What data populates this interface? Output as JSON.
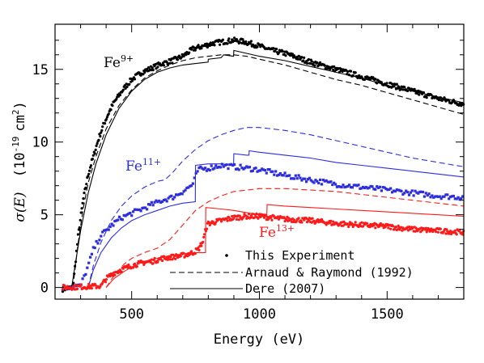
{
  "chart_data": {
    "type": "line",
    "xlabel": "Energy (eV)",
    "ylabel_main": "σ(E)",
    "ylabel_unit": "(10",
    "ylabel_exp1": "-19",
    "ylabel_unit2": "cm",
    "ylabel_exp2": "2",
    "ylabel_close": ")",
    "xlim": [
      200,
      1800
    ],
    "ylim": [
      -0.8,
      18.1
    ],
    "x_ticks": [
      500,
      1000,
      1500
    ],
    "x_tick_labels": [
      "500",
      "1000",
      "1500"
    ],
    "y_ticks": [
      0,
      5,
      10,
      15
    ],
    "y_tick_labels": [
      "0",
      "5",
      "10",
      "15"
    ],
    "grid": false,
    "legend_position": "bottom-right",
    "legend": [
      {
        "label": "This Experiment",
        "style": "dots"
      },
      {
        "label": "Arnaud & Raymond (1992)",
        "style": "dashed"
      },
      {
        "label": "Dere (2007)",
        "style": "solid"
      }
    ],
    "ions": [
      {
        "element": "Fe",
        "charge": "9+",
        "color": "#000000",
        "experiment": {
          "x": [
            230,
            270,
            290,
            310,
            330,
            350,
            370,
            390,
            410,
            430,
            450,
            470,
            500,
            540,
            580,
            620,
            660,
            700,
            740,
            780,
            820,
            860,
            900,
            940,
            980,
            1000,
            1050,
            1100,
            1200,
            1300,
            1400,
            1500,
            1600,
            1700,
            1800
          ],
          "y": [
            -0.1,
            0.0,
            3.5,
            6.0,
            7.8,
            9.0,
            10.2,
            11.2,
            12.0,
            12.7,
            13.2,
            13.7,
            14.3,
            14.8,
            15.1,
            15.4,
            15.6,
            15.9,
            16.4,
            16.6,
            16.8,
            16.9,
            17.0,
            16.9,
            16.7,
            16.6,
            16.3,
            16.1,
            15.5,
            15.0,
            14.5,
            14.0,
            13.5,
            13.0,
            12.6
          ]
        },
        "arnaud_raymond": {
          "x": [
            270,
            290,
            310,
            330,
            360,
            400,
            450,
            500,
            550,
            600,
            650,
            700,
            750,
            800,
            850,
            880,
            900,
            950,
            1000,
            1100,
            1200,
            1300,
            1400,
            1500,
            1600,
            1700,
            1800
          ],
          "y": [
            0,
            3.0,
            5.4,
            7.2,
            9.0,
            10.9,
            12.5,
            13.6,
            14.4,
            14.9,
            15.3,
            15.6,
            15.8,
            15.9,
            16.0,
            16.0,
            16.0,
            15.9,
            15.7,
            15.3,
            14.8,
            14.3,
            13.9,
            13.4,
            12.9,
            12.4,
            11.9
          ]
        },
        "dere": {
          "x": [
            265,
            280,
            300,
            330,
            360,
            400,
            450,
            500,
            550,
            600,
            650,
            700,
            750,
            799,
            800,
            850,
            860,
            899,
            900,
            950,
            1000,
            1100,
            1200,
            1300,
            1400,
            1500,
            1600,
            1700,
            1800
          ],
          "y": [
            0,
            1.7,
            3.9,
            6.5,
            8.5,
            10.5,
            12.3,
            13.5,
            14.3,
            14.8,
            15.1,
            15.3,
            15.4,
            15.5,
            15.7,
            15.8,
            16.0,
            15.9,
            16.3,
            16.1,
            15.9,
            15.6,
            15.2,
            14.8,
            14.4,
            13.9,
            13.5,
            13.1,
            12.7
          ]
        }
      },
      {
        "element": "Fe",
        "charge": "11+",
        "color": "#2d2de0",
        "experiment": {
          "x": [
            230,
            300,
            330,
            350,
            380,
            400,
            430,
            460,
            500,
            540,
            580,
            620,
            660,
            700,
            740,
            760,
            800,
            850,
            900,
            950,
            1000,
            1050,
            1100,
            1200,
            1300,
            1400,
            1500,
            1600,
            1700,
            1800
          ],
          "y": [
            0,
            0.1,
            1.5,
            2.6,
            3.6,
            3.9,
            4.4,
            4.8,
            5.1,
            5.4,
            5.7,
            6.0,
            6.2,
            6.6,
            7.1,
            8.1,
            8.2,
            8.4,
            8.3,
            8.2,
            8.1,
            7.9,
            7.7,
            7.4,
            7.1,
            6.9,
            6.7,
            6.5,
            6.3,
            6.2
          ]
        },
        "arnaud_raymond": {
          "x": [
            330,
            350,
            380,
            420,
            460,
            500,
            550,
            600,
            630,
            660,
            700,
            750,
            800,
            850,
            900,
            950,
            1000,
            1100,
            1200,
            1300,
            1400,
            1500,
            1600,
            1700,
            1800
          ],
          "y": [
            0,
            1.5,
            3.1,
            4.6,
            5.6,
            6.3,
            6.9,
            7.3,
            7.4,
            7.9,
            8.7,
            9.5,
            10.1,
            10.5,
            10.8,
            11.0,
            11.0,
            10.8,
            10.5,
            10.1,
            9.7,
            9.3,
            8.9,
            8.6,
            8.3
          ]
        },
        "dere": {
          "x": [
            330,
            350,
            380,
            420,
            460,
            500,
            550,
            600,
            650,
            700,
            749,
            750,
            800,
            850,
            899,
            900,
            950,
            959,
            960,
            1000,
            1100,
            1200,
            1300,
            1400,
            1500,
            1600,
            1700,
            1800
          ],
          "y": [
            0,
            1.2,
            2.4,
            3.4,
            4.1,
            4.6,
            5.0,
            5.3,
            5.6,
            5.8,
            5.9,
            8.4,
            8.5,
            8.5,
            8.4,
            9.2,
            9.1,
            9.1,
            9.4,
            9.3,
            9.1,
            8.9,
            8.6,
            8.4,
            8.2,
            8.0,
            7.8,
            7.6
          ]
        }
      },
      {
        "element": "Fe",
        "charge": "13+",
        "color": "#ff1a1a",
        "experiment": {
          "x": [
            230,
            380,
            400,
            430,
            470,
            500,
            540,
            580,
            620,
            660,
            700,
            740,
            760,
            780,
            790,
            800,
            850,
            900,
            950,
            1000,
            1050,
            1100,
            1200,
            1300,
            1400,
            1500,
            1600,
            1700,
            1800
          ],
          "y": [
            0,
            0.1,
            0.6,
            1.0,
            1.3,
            1.5,
            1.7,
            1.8,
            2.0,
            2.1,
            2.2,
            2.4,
            2.6,
            3.2,
            4.0,
            4.4,
            4.6,
            4.8,
            4.9,
            4.9,
            4.8,
            4.7,
            4.6,
            4.4,
            4.3,
            4.2,
            4.0,
            3.9,
            3.8
          ]
        },
        "arnaud_raymond": {
          "x": [
            400,
            430,
            470,
            500,
            550,
            600,
            650,
            700,
            750,
            800,
            850,
            900,
            950,
            1000,
            1050,
            1100,
            1200,
            1300,
            1400,
            1500,
            1600,
            1700,
            1800
          ],
          "y": [
            0,
            0.8,
            1.6,
            2.0,
            2.4,
            2.7,
            3.3,
            4.3,
            5.3,
            5.9,
            6.3,
            6.6,
            6.7,
            6.8,
            6.8,
            6.8,
            6.7,
            6.6,
            6.4,
            6.2,
            6.0,
            5.8,
            5.6
          ]
        },
        "dere": {
          "x": [
            400,
            430,
            470,
            500,
            550,
            600,
            650,
            700,
            750,
            789,
            790,
            850,
            900,
            999,
            1000,
            1029,
            1030,
            1100,
            1200,
            1300,
            1400,
            1500,
            1600,
            1700,
            1800
          ],
          "y": [
            0,
            0.6,
            1.1,
            1.4,
            1.8,
            2.0,
            2.2,
            2.3,
            2.4,
            2.4,
            5.5,
            5.4,
            5.3,
            5.0,
            5.1,
            5.0,
            5.7,
            5.6,
            5.5,
            5.4,
            5.3,
            5.2,
            5.1,
            5.0,
            4.9
          ]
        }
      }
    ]
  }
}
